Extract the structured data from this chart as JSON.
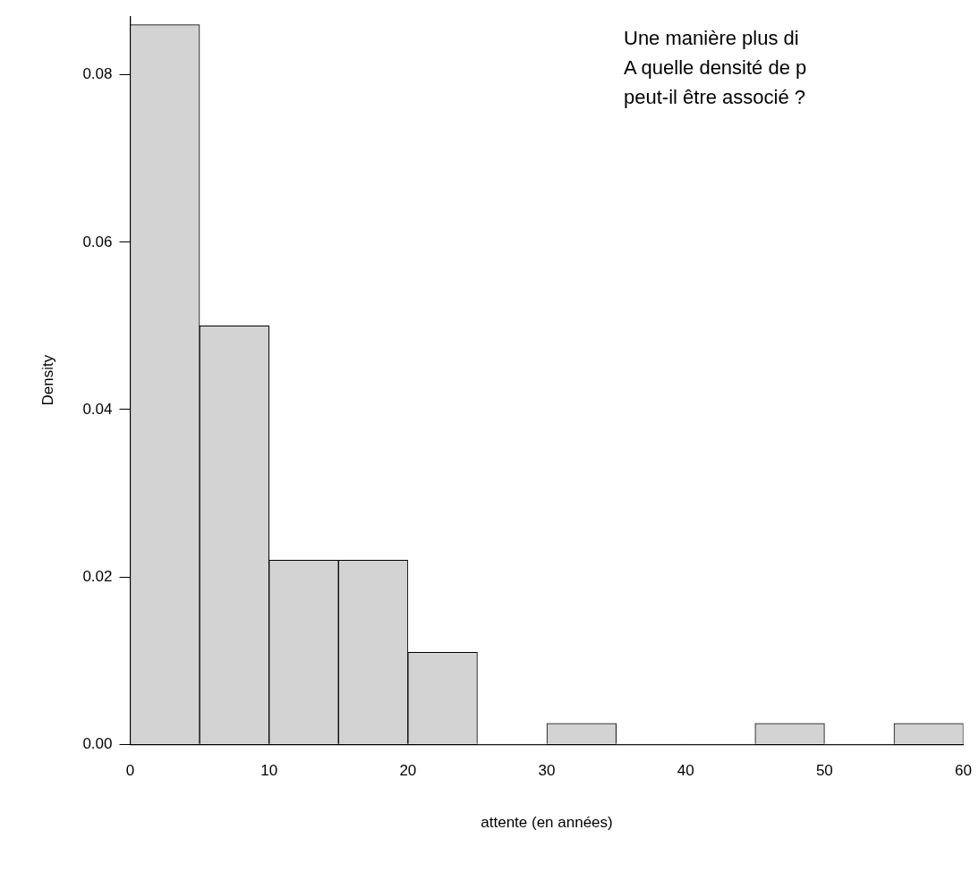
{
  "chart_data": {
    "type": "histogram",
    "xlabel": "attente (en années)",
    "ylabel": "Density",
    "bins": [
      0,
      5,
      10,
      15,
      20,
      25,
      30,
      35,
      40,
      45,
      50,
      55,
      60
    ],
    "values": [
      0.086,
      0.05,
      0.022,
      0.022,
      0.011,
      0,
      0.0025,
      0,
      0,
      0.0025,
      0,
      0.0025
    ],
    "color": "#d3d3d3",
    "xlim": [
      0,
      60
    ],
    "xticks": [
      0,
      10,
      20,
      30,
      40,
      50,
      60
    ],
    "ylim": [
      0,
      0.087
    ],
    "yticks": [
      {
        "value": 0,
        "label": "0.00"
      },
      0.02,
      0.04,
      0.06,
      0.08
    ],
    "grid": false,
    "legend": false,
    "annotations": [
      "Une manière plus di",
      "A quelle densité de p",
      "peut-il être associé ?"
    ]
  }
}
